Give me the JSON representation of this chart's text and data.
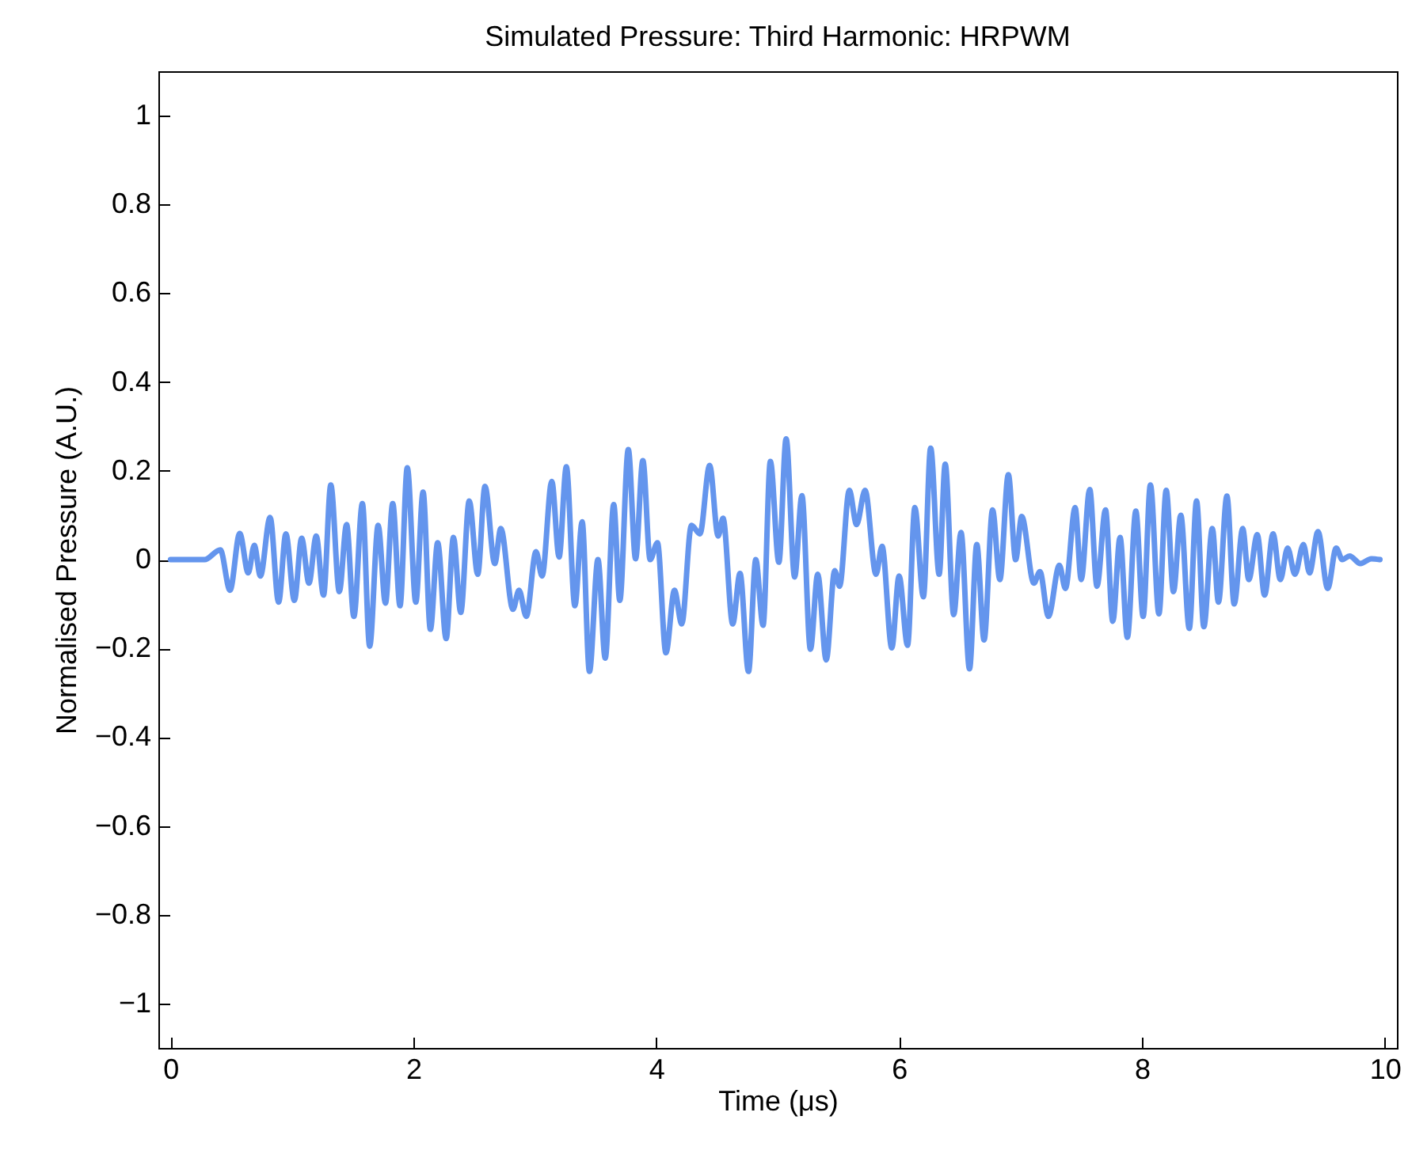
{
  "chart_data": {
    "type": "line",
    "title": "Simulated Pressure: Third Harmonic: HRPWM",
    "xlabel": "Time (μs)",
    "ylabel": "Normalised Pressure (A.U.)",
    "xlim": [
      -0.1,
      10.1
    ],
    "ylim": [
      -1.1,
      1.1
    ],
    "xticks": [
      0,
      2,
      4,
      6,
      8,
      10
    ],
    "yticks": [
      {
        "value": -1,
        "label": "−1"
      },
      {
        "value": -0.8,
        "label": "−0.8"
      },
      {
        "value": -0.6,
        "label": "−0.6"
      },
      {
        "value": -0.4,
        "label": "−0.4"
      },
      {
        "value": -0.2,
        "label": "−0.2"
      },
      0,
      0.2,
      0.4,
      0.6,
      0.8,
      1
    ],
    "grid": false,
    "marker": "none",
    "line_style": "solid",
    "x": [
      0,
      0.28,
      0.41,
      0.49,
      0.57,
      0.64,
      0.69,
      0.74,
      0.82,
      0.89,
      0.95,
      1.02,
      1.08,
      1.14,
      1.2,
      1.26,
      1.32,
      1.39,
      1.45,
      1.51,
      1.58,
      1.64,
      1.71,
      1.77,
      1.83,
      1.89,
      1.95,
      2.02,
      2.08,
      2.14,
      2.2,
      2.27,
      2.33,
      2.39,
      2.46,
      2.53,
      2.59,
      2.67,
      2.72,
      2.82,
      2.87,
      2.93,
      3.01,
      3.06,
      3.14,
      3.2,
      3.26,
      3.33,
      3.39,
      3.45,
      3.52,
      3.58,
      3.65,
      3.7,
      3.77,
      3.83,
      3.89,
      3.95,
      4.01,
      4.08,
      4.15,
      4.21,
      4.29,
      4.36,
      4.44,
      4.51,
      4.55,
      4.63,
      4.69,
      4.76,
      4.82,
      4.88,
      4.94,
      5.01,
      5.07,
      5.14,
      5.2,
      5.27,
      5.33,
      5.4,
      5.47,
      5.51,
      5.59,
      5.65,
      5.72,
      5.81,
      5.86,
      5.94,
      6,
      6.07,
      6.13,
      6.2,
      6.26,
      6.33,
      6.38,
      6.45,
      6.51,
      6.58,
      6.64,
      6.7,
      6.77,
      6.83,
      6.9,
      6.96,
      7.01,
      7.11,
      7.16,
      7.23,
      7.32,
      7.37,
      7.45,
      7.5,
      7.57,
      7.63,
      7.7,
      7.76,
      7.82,
      7.88,
      7.95,
      8.01,
      8.07,
      8.14,
      8.2,
      8.26,
      8.32,
      8.39,
      8.45,
      8.51,
      8.58,
      8.63,
      8.7,
      8.76,
      8.83,
      8.88,
      8.95,
      9.01,
      9.08,
      9.14,
      9.2,
      9.26,
      9.33,
      9.38,
      9.45,
      9.53,
      9.6,
      9.65,
      9.71,
      9.8,
      9.89,
      9.96
    ],
    "series": [
      {
        "color": "#6495ed",
        "values": [
          0,
          0,
          0.022,
          -0.069,
          0.059,
          -0.03,
          0.032,
          -0.037,
          0.095,
          -0.096,
          0.058,
          -0.092,
          0.048,
          -0.053,
          0.053,
          -0.08,
          0.168,
          -0.072,
          0.079,
          -0.128,
          0.126,
          -0.195,
          0.077,
          -0.098,
          0.126,
          -0.104,
          0.207,
          -0.096,
          0.152,
          -0.157,
          0.038,
          -0.178,
          0.05,
          -0.119,
          0.132,
          -0.033,
          0.165,
          -0.009,
          0.07,
          -0.112,
          -0.069,
          -0.128,
          0.018,
          -0.037,
          0.176,
          0.006,
          0.209,
          -0.104,
          0.085,
          -0.252,
          0,
          -0.222,
          0.124,
          -0.092,
          0.248,
          0.002,
          0.223,
          0,
          0.038,
          -0.21,
          -0.069,
          -0.145,
          0.077,
          0.058,
          0.212,
          0.053,
          0.093,
          -0.145,
          -0.031,
          -0.252,
          0,
          -0.148,
          0.221,
          -0.006,
          0.272,
          -0.039,
          0.144,
          -0.202,
          -0.033,
          -0.226,
          -0.025,
          -0.06,
          0.156,
          0.079,
          0.156,
          -0.033,
          0.03,
          -0.199,
          -0.037,
          -0.193,
          0.117,
          -0.084,
          0.251,
          -0.033,
          0.215,
          -0.124,
          0.061,
          -0.246,
          0.034,
          -0.181,
          0.112,
          -0.045,
          0.191,
          0,
          0.097,
          -0.053,
          -0.027,
          -0.128,
          -0.013,
          -0.065,
          0.117,
          -0.045,
          0.158,
          -0.06,
          0.112,
          -0.139,
          0.05,
          -0.175,
          0.109,
          -0.128,
          0.168,
          -0.122,
          0.156,
          -0.072,
          0.1,
          -0.155,
          0.132,
          -0.151,
          0.07,
          -0.096,
          0.143,
          -0.1,
          0.07,
          -0.045,
          0.056,
          -0.08,
          0.058,
          -0.045,
          0.026,
          -0.033,
          0.034,
          -0.03,
          0.063,
          -0.065,
          0.026,
          0,
          0.008,
          -0.009,
          0.002,
          0
        ]
      }
    ]
  }
}
